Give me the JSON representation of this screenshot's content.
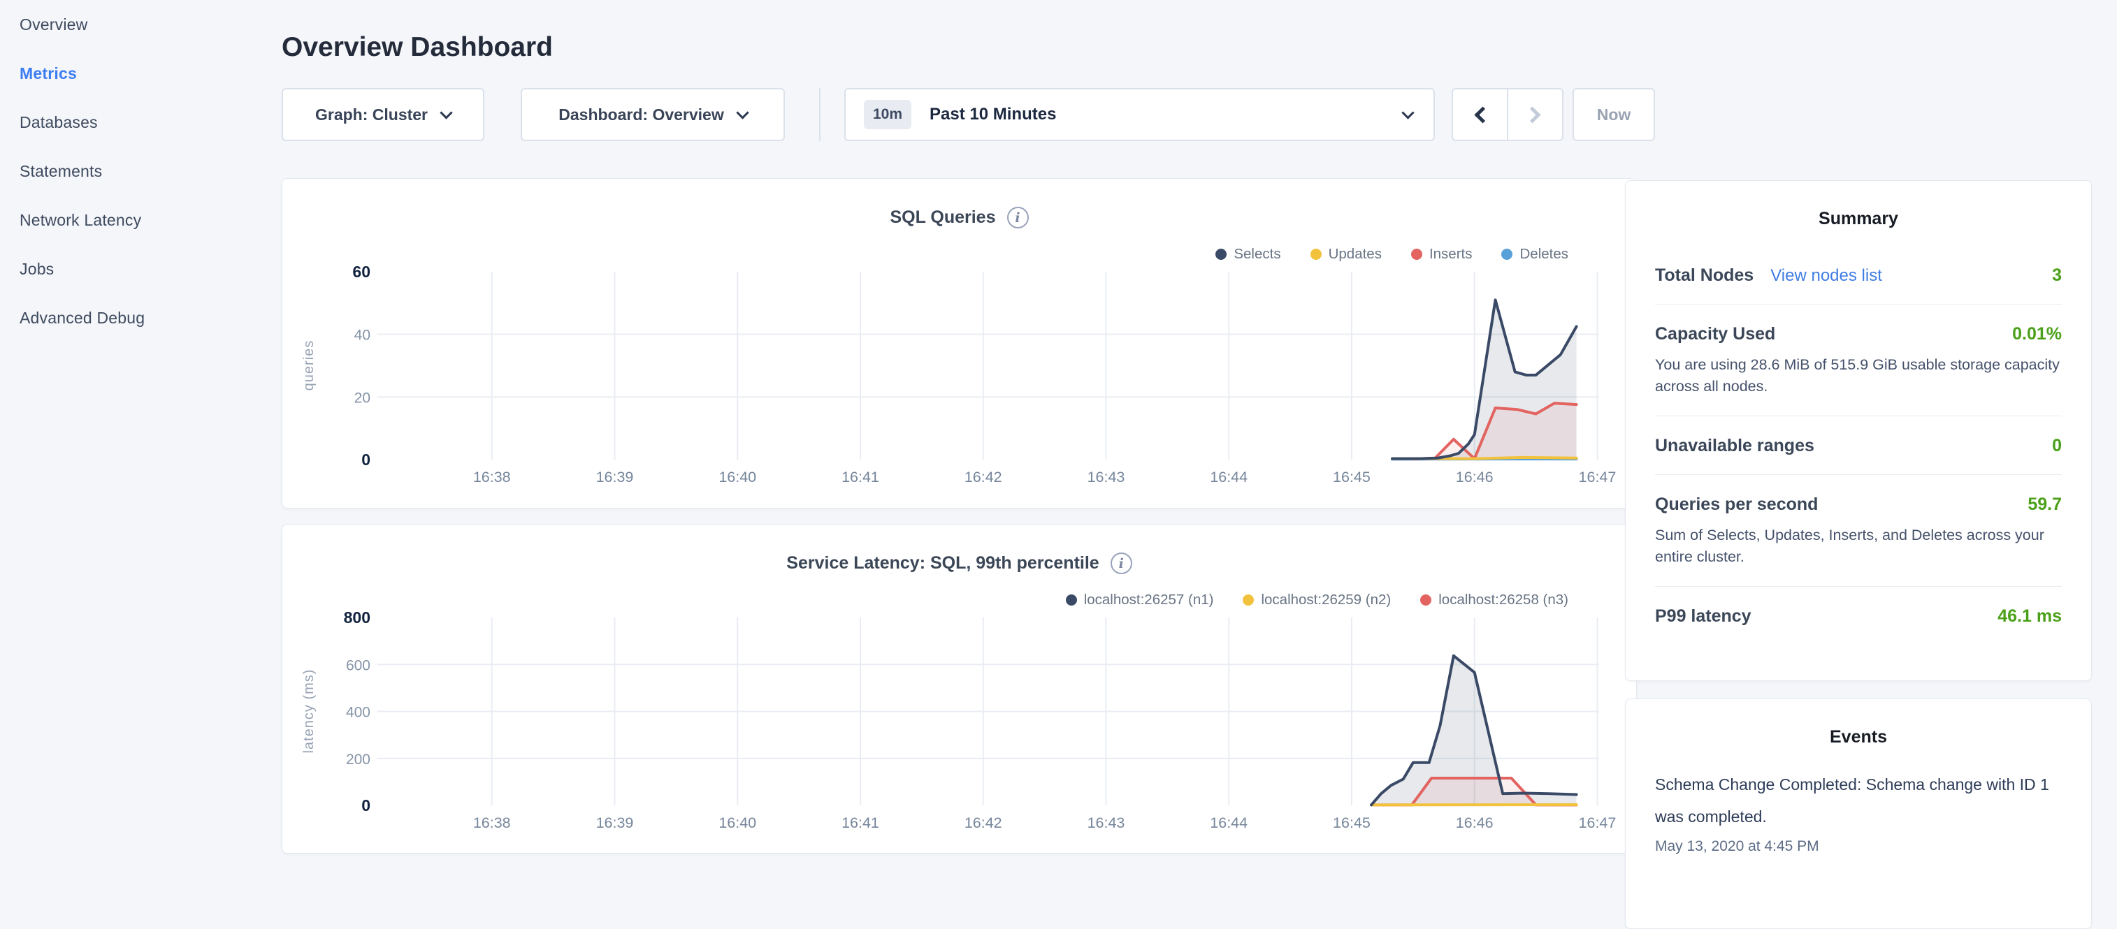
{
  "sidebar": {
    "items": [
      {
        "label": "Overview",
        "active": false
      },
      {
        "label": "Metrics",
        "active": true
      },
      {
        "label": "Databases",
        "active": false
      },
      {
        "label": "Statements",
        "active": false
      },
      {
        "label": "Network Latency",
        "active": false
      },
      {
        "label": "Jobs",
        "active": false
      },
      {
        "label": "Advanced Debug",
        "active": false
      }
    ]
  },
  "header": {
    "title": "Overview Dashboard"
  },
  "controls": {
    "graph_dropdown": "Graph: Cluster",
    "dashboard_dropdown": "Dashboard: Overview",
    "time_window_badge": "10m",
    "time_window_label": "Past 10 Minutes",
    "now_button": "Now"
  },
  "summary": {
    "title": "Summary",
    "rows": [
      {
        "label": "Total Nodes",
        "link": "View nodes list",
        "value": "3"
      },
      {
        "label": "Capacity Used",
        "value": "0.01%",
        "desc": "You are using 28.6 MiB of 515.9 GiB usable storage capacity across all nodes."
      },
      {
        "label": "Unavailable ranges",
        "value": "0"
      },
      {
        "label": "Queries per second",
        "value": "59.7",
        "desc": "Sum of Selects, Updates, Inserts, and Deletes across your entire cluster."
      },
      {
        "label": "P99 latency",
        "value": "46.1 ms"
      }
    ]
  },
  "events": {
    "title": "Events",
    "items": [
      {
        "message": "Schema Change Completed: Schema change with ID 1 was completed.",
        "timestamp": "May 13, 2020 at 4:45 PM"
      }
    ]
  },
  "colors": {
    "accent_blue": "#3d7ef2",
    "link_blue": "#3f7de2",
    "value_green": "#4ba019",
    "grid": "#e9edf3",
    "tick_strong": "#12233f",
    "tick_light": "#8593a6",
    "x_label": "#76869b",
    "series_navy": "#3a4a66",
    "series_yellow": "#f2c23c",
    "series_red": "#e2635f",
    "series_blue": "#58a0d8"
  },
  "chart_data": [
    {
      "type": "area",
      "title": "SQL Queries",
      "ylabel": "queries",
      "ylim": [
        0,
        60
      ],
      "y_ticks": [
        0,
        20,
        40,
        60
      ],
      "y_grid": [
        20,
        40
      ],
      "xlim": [
        37.0,
        47.06
      ],
      "x_ticks": [
        {
          "x": 38,
          "label": "16:38"
        },
        {
          "x": 39,
          "label": "16:39"
        },
        {
          "x": 40,
          "label": "16:40"
        },
        {
          "x": 41,
          "label": "16:41"
        },
        {
          "x": 42,
          "label": "16:42"
        },
        {
          "x": 43,
          "label": "16:43"
        },
        {
          "x": 44,
          "label": "16:44"
        },
        {
          "x": 45,
          "label": "16:45"
        },
        {
          "x": 46,
          "label": "16:46"
        },
        {
          "x": 47,
          "label": "16:47"
        }
      ],
      "legend_position": "top-right",
      "series": [
        {
          "name": "Selects",
          "color": "#3a4a66",
          "fill": "rgba(58,74,102,0.12)",
          "points": [
            [
              45.33,
              0.3
            ],
            [
              45.55,
              0.3
            ],
            [
              45.7,
              0.5
            ],
            [
              45.8,
              1.2
            ],
            [
              45.87,
              2
            ],
            [
              45.95,
              5
            ],
            [
              46.0,
              8
            ],
            [
              46.17,
              51
            ],
            [
              46.33,
              28
            ],
            [
              46.42,
              27
            ],
            [
              46.5,
              27
            ],
            [
              46.7,
              33.5
            ],
            [
              46.83,
              42.5
            ]
          ]
        },
        {
          "name": "Updates",
          "color": "#f2c23c",
          "fill": null,
          "points": [
            [
              45.33,
              0.3
            ],
            [
              46.0,
              0.3
            ],
            [
              46.4,
              0.7
            ],
            [
              46.83,
              0.5
            ]
          ]
        },
        {
          "name": "Inserts",
          "color": "#e2635f",
          "fill": "rgba(226,99,95,0.10)",
          "points": [
            [
              45.5,
              0.2
            ],
            [
              45.68,
              0.5
            ],
            [
              45.83,
              6.5
            ],
            [
              46.0,
              0.3
            ],
            [
              46.17,
              16.5
            ],
            [
              46.35,
              16
            ],
            [
              46.5,
              14.6
            ],
            [
              46.65,
              18
            ],
            [
              46.83,
              17.6
            ]
          ]
        },
        {
          "name": "Deletes",
          "color": "#58a0d8",
          "fill": null,
          "points": [
            [
              45.33,
              0.15
            ],
            [
              46.83,
              0.2
            ]
          ]
        }
      ]
    },
    {
      "type": "area",
      "title": "Service Latency: SQL, 99th percentile",
      "ylabel": "latency (ms)",
      "ylim": [
        0,
        800
      ],
      "y_ticks": [
        0,
        200,
        400,
        600,
        800
      ],
      "y_grid": [
        200,
        400,
        600
      ],
      "xlim": [
        37.0,
        47.06
      ],
      "x_ticks": [
        {
          "x": 38,
          "label": "16:38"
        },
        {
          "x": 39,
          "label": "16:39"
        },
        {
          "x": 40,
          "label": "16:40"
        },
        {
          "x": 41,
          "label": "16:41"
        },
        {
          "x": 42,
          "label": "16:42"
        },
        {
          "x": 43,
          "label": "16:43"
        },
        {
          "x": 44,
          "label": "16:44"
        },
        {
          "x": 45,
          "label": "16:45"
        },
        {
          "x": 46,
          "label": "16:46"
        },
        {
          "x": 47,
          "label": "16:47"
        }
      ],
      "legend_position": "top-right",
      "series": [
        {
          "name": "localhost:26257 (n1)",
          "color": "#3a4a66",
          "fill": "rgba(58,74,102,0.12)",
          "points": [
            [
              45.16,
              2
            ],
            [
              45.24,
              50
            ],
            [
              45.32,
              85
            ],
            [
              45.42,
              112
            ],
            [
              45.5,
              182
            ],
            [
              45.63,
              182
            ],
            [
              45.72,
              340
            ],
            [
              45.83,
              637
            ],
            [
              46.0,
              566
            ],
            [
              46.23,
              50
            ],
            [
              46.4,
              52
            ],
            [
              46.6,
              50
            ],
            [
              46.83,
              46
            ]
          ]
        },
        {
          "name": "localhost:26259 (n2)",
          "color": "#f2c23c",
          "fill": null,
          "points": [
            [
              45.16,
              2
            ],
            [
              46.83,
              3
            ]
          ]
        },
        {
          "name": "localhost:26258 (n3)",
          "color": "#e2635f",
          "fill": "rgba(226,99,95,0.10)",
          "points": [
            [
              45.16,
              2
            ],
            [
              45.49,
              2
            ],
            [
              45.65,
              116
            ],
            [
              46.3,
              116
            ],
            [
              46.5,
              2
            ],
            [
              46.83,
              2
            ]
          ]
        }
      ]
    }
  ]
}
